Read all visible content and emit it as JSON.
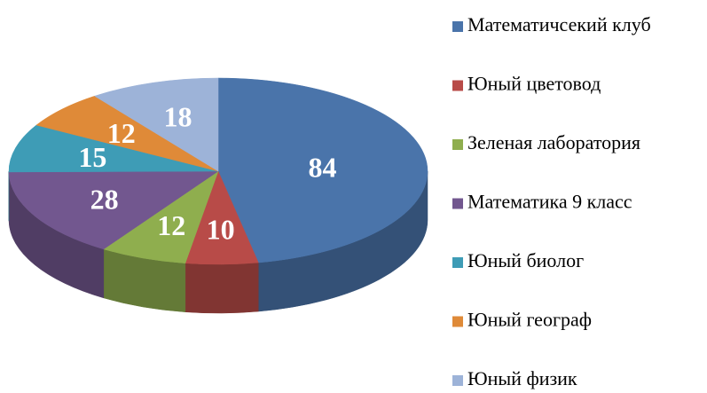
{
  "chart_data": {
    "type": "pie",
    "categories": [
      "Математичсекий клуб",
      "Юный цветовод",
      "Зеленая лаборатория",
      "Математика 9 класс",
      "Юный биолог",
      "Юный географ",
      "Юный физик"
    ],
    "values": [
      84,
      10,
      12,
      28,
      15,
      12,
      18
    ],
    "colors": [
      "#4a74aa",
      "#b84b48",
      "#8fae4e",
      "#72578f",
      "#3e9cb6",
      "#df8a38",
      "#9db3d8"
    ],
    "legend": "right"
  }
}
